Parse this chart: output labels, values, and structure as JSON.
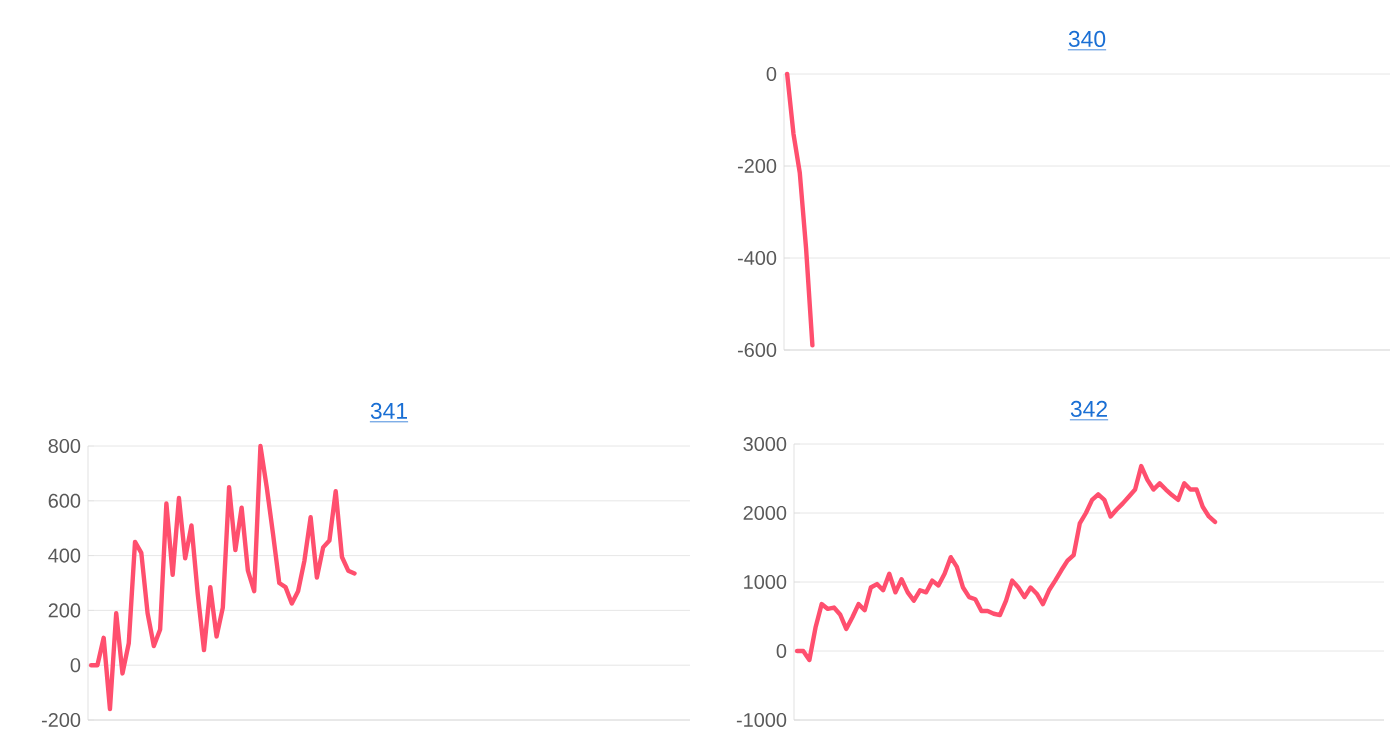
{
  "chart_data": [
    {
      "type": "line",
      "title": "340",
      "color": "#ff4f6e",
      "ylim": [
        -600,
        0
      ],
      "yticks": [
        0,
        -200,
        -400,
        -600
      ],
      "grid": "y",
      "tick_labels": "y",
      "categories": [
        null,
        null,
        null,
        null,
        null,
        null,
        null,
        null,
        null,
        null,
        null,
        null,
        null,
        null,
        null,
        null,
        null,
        null,
        null,
        null,
        null,
        null,
        null,
        null,
        null,
        null,
        null,
        null,
        null,
        null,
        null,
        null,
        null,
        null,
        null,
        null,
        null,
        null,
        null,
        null,
        null,
        null,
        null,
        null,
        null,
        null,
        null,
        null,
        null,
        null,
        null,
        null,
        null,
        null,
        null,
        null,
        null,
        null,
        null,
        null,
        null,
        null,
        null,
        null,
        null,
        null,
        null,
        null,
        null,
        null,
        null,
        null,
        null,
        null,
        null,
        null,
        null,
        null,
        null,
        null,
        null,
        null,
        null,
        null,
        null,
        null,
        null,
        null,
        null,
        null,
        null,
        null,
        null,
        null,
        null,
        null
      ],
      "values": [
        0,
        -130,
        -215,
        -380,
        -590,
        null,
        null,
        null,
        null,
        null,
        null,
        null,
        null,
        null,
        null,
        null,
        null,
        null,
        null,
        null,
        null,
        null,
        null,
        null,
        null,
        null,
        null,
        null,
        null,
        null,
        null,
        null,
        null,
        null,
        null,
        null,
        null,
        null,
        null,
        null,
        null,
        null,
        null,
        null,
        null,
        null,
        null,
        null,
        null,
        null,
        null,
        null,
        null,
        null,
        null,
        null,
        null,
        null,
        null,
        null,
        null,
        null,
        null,
        null,
        null,
        null,
        null,
        null,
        null,
        null,
        null,
        null,
        null,
        null,
        null,
        null,
        null,
        null,
        null,
        null,
        null,
        null,
        null,
        null,
        null,
        null,
        null,
        null,
        null,
        null,
        null,
        null,
        null,
        null,
        null,
        null
      ]
    },
    {
      "type": "line",
      "title": "341",
      "color": "#ff4f6e",
      "ylim": [
        -200,
        800
      ],
      "yticks": [
        -200,
        0,
        200,
        400,
        600,
        800
      ],
      "grid": "y",
      "tick_labels": "y",
      "categories": [
        null,
        null,
        null,
        null,
        null,
        null,
        null,
        null,
        null,
        null,
        null,
        null,
        null,
        null,
        null,
        null,
        null,
        null,
        null,
        null,
        null,
        null,
        null,
        null,
        null,
        null,
        null,
        null,
        null,
        null,
        null,
        null,
        null,
        null,
        null,
        null,
        null,
        null,
        null,
        null,
        null,
        null,
        null,
        null,
        null,
        null,
        null,
        null,
        null,
        null,
        null,
        null,
        null,
        null,
        null,
        null,
        null,
        null,
        null,
        null,
        null,
        null,
        null,
        null,
        null,
        null,
        null,
        null,
        null,
        null,
        null,
        null,
        null,
        null,
        null,
        null,
        null,
        null,
        null,
        null,
        null,
        null,
        null,
        null,
        null,
        null,
        null,
        null,
        null,
        null,
        null,
        null,
        null,
        null,
        null,
        null
      ],
      "values": [
        0,
        0,
        100,
        -160,
        190,
        -30,
        80,
        450,
        410,
        190,
        70,
        130,
        590,
        330,
        610,
        390,
        510,
        260,
        55,
        285,
        105,
        210,
        650,
        420,
        575,
        345,
        270,
        800,
        650,
        480,
        300,
        285,
        225,
        270,
        380,
        540,
        320,
        430,
        455,
        635,
        395,
        345,
        335,
        null,
        null,
        null,
        null,
        null,
        null,
        null,
        null,
        null,
        null,
        null,
        null,
        null,
        null,
        null,
        null,
        null,
        null,
        null,
        null,
        null,
        null,
        null,
        null,
        null,
        null,
        null,
        null,
        null,
        null,
        null,
        null,
        null,
        null,
        null,
        null,
        null,
        null,
        null,
        null,
        null,
        null,
        null,
        null,
        null,
        null,
        null,
        null,
        null,
        null,
        null,
        null,
        null
      ]
    },
    {
      "type": "line",
      "title": "342",
      "color": "#ff4f6e",
      "ylim": [
        -1000,
        3000
      ],
      "yticks": [
        -1000,
        0,
        1000,
        2000,
        3000
      ],
      "grid": "y",
      "tick_labels": "y",
      "categories": [
        null,
        null,
        null,
        null,
        null,
        null,
        null,
        null,
        null,
        null,
        null,
        null,
        null,
        null,
        null,
        null,
        null,
        null,
        null,
        null,
        null,
        null,
        null,
        null,
        null,
        null,
        null,
        null,
        null,
        null,
        null,
        null,
        null,
        null,
        null,
        null,
        null,
        null,
        null,
        null,
        null,
        null,
        null,
        null,
        null,
        null,
        null,
        null,
        null,
        null,
        null,
        null,
        null,
        null,
        null,
        null,
        null,
        null,
        null,
        null,
        null,
        null,
        null,
        null,
        null,
        null,
        null,
        null,
        null,
        null,
        null,
        null,
        null,
        null,
        null,
        null,
        null,
        null,
        null,
        null,
        null,
        null,
        null,
        null,
        null,
        null,
        null,
        null,
        null,
        null,
        null,
        null,
        null,
        null,
        null,
        null
      ],
      "values": [
        0,
        0,
        -130,
        340,
        680,
        610,
        630,
        530,
        320,
        490,
        680,
        590,
        920,
        970,
        880,
        1120,
        850,
        1040,
        850,
        730,
        880,
        850,
        1020,
        950,
        1120,
        1360,
        1220,
        920,
        780,
        750,
        580,
        580,
        540,
        520,
        730,
        1020,
        920,
        780,
        920,
        830,
        680,
        880,
        1020,
        1170,
        1310,
        1390,
        1850,
        2000,
        2190,
        2270,
        2190,
        1950,
        2050,
        2140,
        2240,
        2340,
        2680,
        2480,
        2340,
        2430,
        2340,
        2260,
        2190,
        2430,
        2340,
        2340,
        2090,
        1950,
        1870,
        null,
        null,
        null,
        null,
        null,
        null,
        null,
        null,
        null,
        null,
        null,
        null,
        null,
        null,
        null,
        null,
        null,
        null,
        null,
        null,
        null,
        null,
        null,
        null,
        null,
        null,
        null
      ]
    }
  ]
}
